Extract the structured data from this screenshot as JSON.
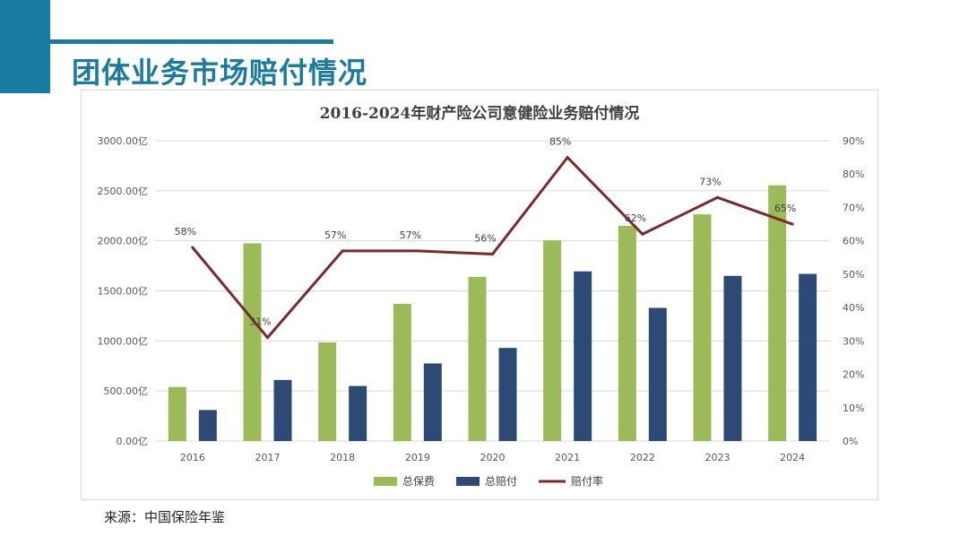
{
  "slide": {
    "title": "团体业务市场赔付情况",
    "source": "来源：中国保险年鉴"
  },
  "colors": {
    "accent": "#1b7aa0",
    "premium": "#9bbb59",
    "claims": "#2c4a74",
    "ratio": "#7b2a2a"
  },
  "chart_data": {
    "type": "bar",
    "title": "2016-2024年财产险公司意健险业务赔付情况",
    "categories": [
      "2016",
      "2017",
      "2018",
      "2019",
      "2020",
      "2021",
      "2022",
      "2023",
      "2024"
    ],
    "series": [
      {
        "name": "总保费",
        "type": "bar",
        "axis": "left",
        "values": [
          540,
          1975,
          985,
          1370,
          1640,
          2005,
          2150,
          2265,
          2555
        ]
      },
      {
        "name": "总赔付",
        "type": "bar",
        "axis": "left",
        "values": [
          310,
          610,
          550,
          775,
          930,
          1695,
          1330,
          1650,
          1670
        ]
      },
      {
        "name": "赔付率",
        "type": "line",
        "axis": "right",
        "values": [
          58,
          31,
          57,
          57,
          56,
          85,
          62,
          73,
          65
        ],
        "labels": [
          "58%",
          "31%",
          "57%",
          "57%",
          "56%",
          "85%",
          "62%",
          "73%",
          "65%"
        ]
      }
    ],
    "y_left": {
      "ylim": [
        0,
        3000
      ],
      "ticks": [
        0,
        500,
        1000,
        1500,
        2000,
        2500,
        3000
      ],
      "tick_labels": [
        "0.00亿",
        "500.00亿",
        "1000.00亿",
        "1500.00亿",
        "2000.00亿",
        "2500.00亿",
        "3000.00亿"
      ]
    },
    "y_right": {
      "ylim": [
        0,
        90
      ],
      "ticks": [
        0,
        10,
        20,
        30,
        40,
        50,
        60,
        70,
        80,
        90
      ],
      "tick_labels": [
        "0%",
        "10%",
        "20%",
        "30%",
        "40%",
        "50%",
        "60%",
        "70%",
        "80%",
        "90%"
      ]
    },
    "grid": true,
    "legend": "bottom"
  }
}
